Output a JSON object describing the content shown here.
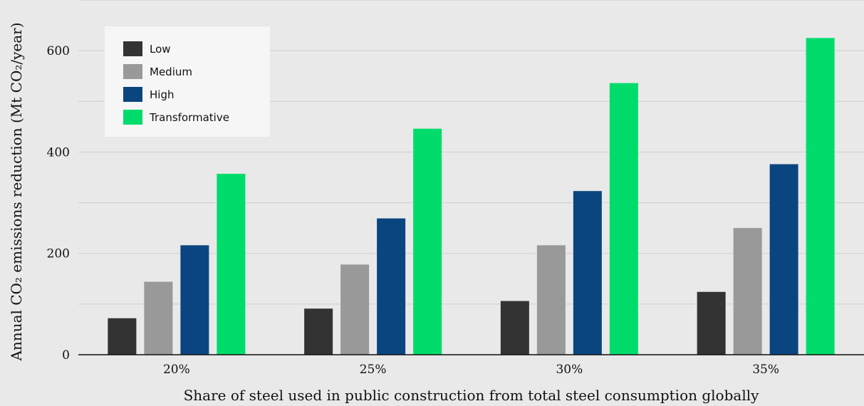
{
  "chart_data": {
    "type": "bar",
    "categories": [
      "20%",
      "25%",
      "30%",
      "35%"
    ],
    "series": [
      {
        "name": "Low",
        "color": "#333333",
        "values": [
          72,
          91,
          106,
          124
        ]
      },
      {
        "name": "Medium",
        "color": "#999999",
        "values": [
          144,
          178,
          216,
          250
        ]
      },
      {
        "name": "High",
        "color": "#0b4580",
        "values": [
          216,
          269,
          323,
          376
        ]
      },
      {
        "name": "Transformative",
        "color": "#00dc6b",
        "values": [
          357,
          446,
          536,
          625
        ]
      }
    ],
    "xlabel": "Share of steel used in public construction from total steel consumption globally",
    "ylabel": "Annual CO₂ emissions reduction (Mt CO₂/year)",
    "ylim": [
      0,
      700
    ],
    "yticks": [
      0,
      200,
      400,
      600
    ],
    "grid": true,
    "legend_position": "top-left",
    "background_color": "#e9e9e9"
  }
}
